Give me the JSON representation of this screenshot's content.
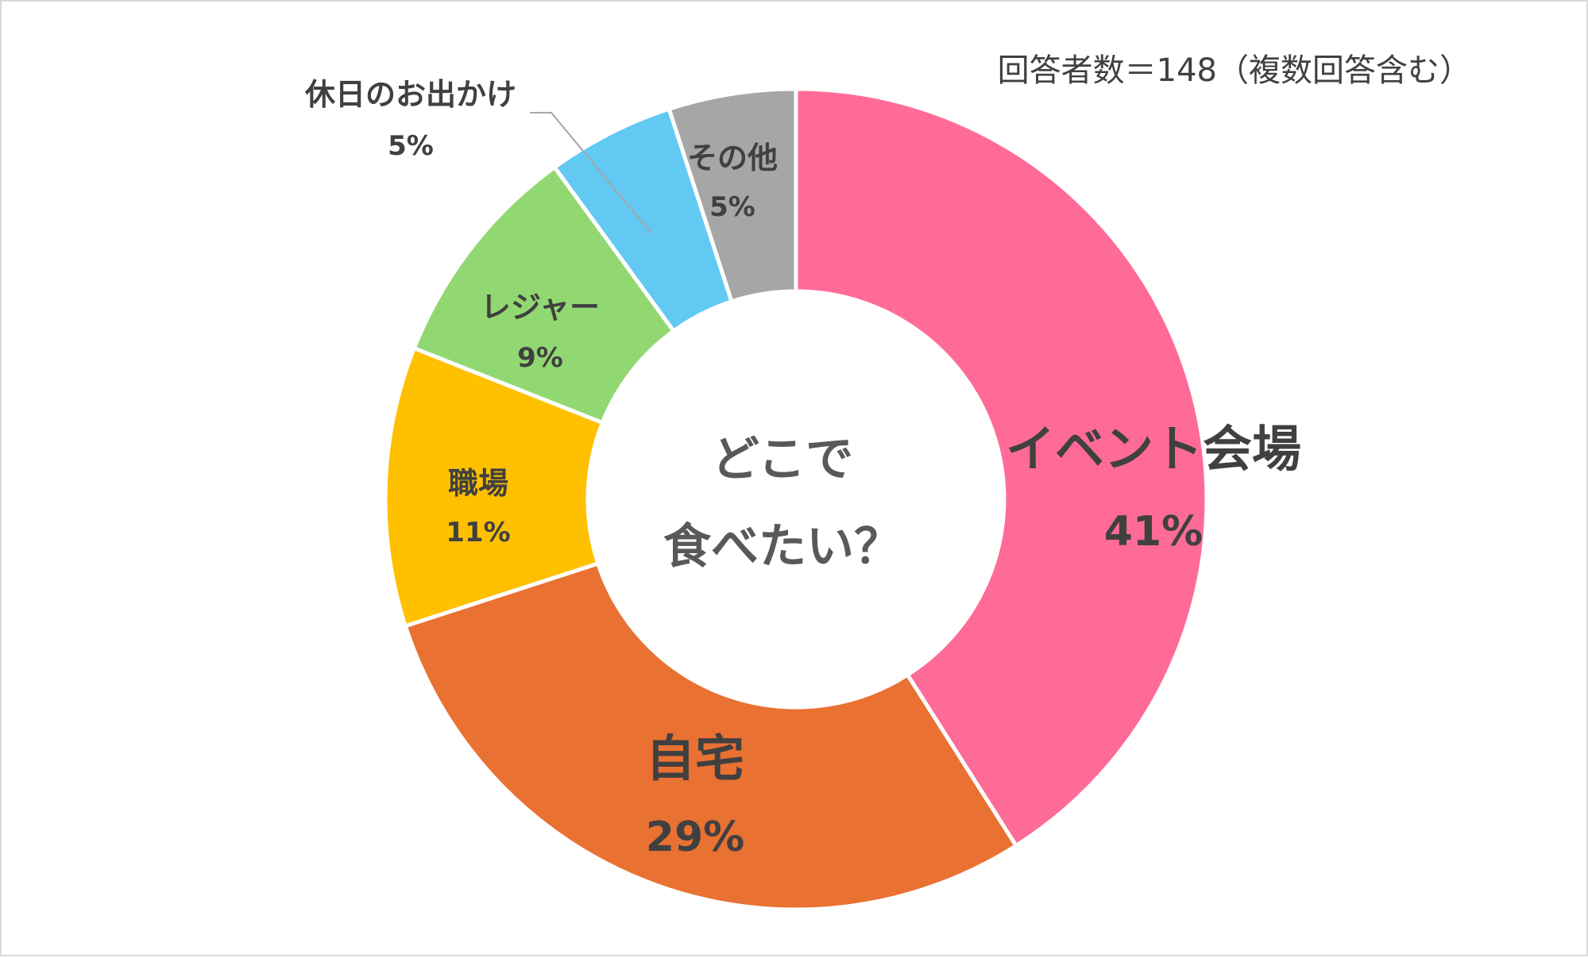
{
  "chart_data": {
    "type": "pie",
    "note": "回答者数＝148（複数回答含む）",
    "center_label": [
      "どこで",
      "食べたい？"
    ],
    "slices": [
      {
        "label": "イベント会場",
        "value": 41,
        "value_label": "41%",
        "color": "#ff6b97"
      },
      {
        "label": "自宅",
        "value": 29,
        "value_label": "29%",
        "color": "#e97132"
      },
      {
        "label": "職場",
        "value": 11,
        "value_label": "11%",
        "color": "#ffc000"
      },
      {
        "label": "レジャー",
        "value": 9,
        "value_label": "9%",
        "color": "#92d872"
      },
      {
        "label": "休日のお出かけ",
        "value": 5,
        "value_label": "5%",
        "color": "#62c9f3"
      },
      {
        "label": "その他",
        "value": 5,
        "value_label": "5%",
        "color": "#a6a6a6"
      }
    ]
  }
}
